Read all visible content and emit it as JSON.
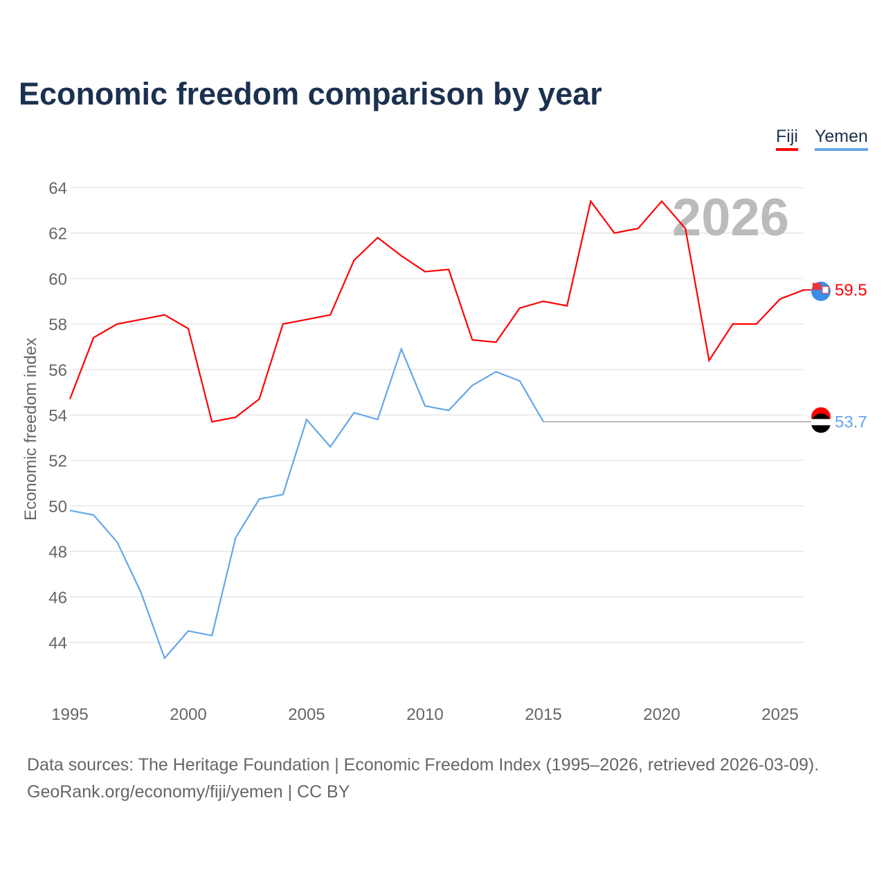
{
  "title": "Economic freedom comparison by year",
  "legend": [
    "Fiji",
    "Yemen"
  ],
  "source_line1": "Data sources: The Heritage Foundation | Economic Freedom Index (1995–2026, retrieved 2026-03-09).",
  "source_line2": "GeoRank.org/economy/fiji/yemen | CC BY",
  "year_label": "2026",
  "chart_data": {
    "type": "line",
    "title": "Economic freedom comparison by year",
    "ylabel": "Economic freedom index",
    "xlabel": "",
    "xlim": [
      1995,
      2026
    ],
    "ylim": [
      42,
      64.5
    ],
    "xticks": [
      1995,
      2000,
      2005,
      2010,
      2015,
      2020,
      2025
    ],
    "yticks": [
      44,
      46,
      48,
      50,
      52,
      54,
      56,
      58,
      60,
      62,
      64
    ],
    "grid": true,
    "legend_placement": "top-right",
    "series": [
      {
        "name": "Fiji",
        "color": "#ff0000",
        "end_label": "59.5",
        "x": [
          1995,
          1996,
          1997,
          1998,
          1999,
          2000,
          2001,
          2002,
          2003,
          2004,
          2005,
          2006,
          2007,
          2008,
          2009,
          2010,
          2011,
          2012,
          2013,
          2014,
          2015,
          2016,
          2017,
          2018,
          2019,
          2020,
          2021,
          2022,
          2023,
          2024,
          2025,
          2026
        ],
        "values": [
          54.7,
          57.4,
          58.0,
          58.2,
          58.4,
          57.8,
          53.7,
          53.9,
          54.7,
          58.0,
          58.2,
          58.4,
          60.8,
          61.8,
          61.0,
          60.3,
          60.4,
          57.3,
          57.2,
          58.7,
          59.0,
          58.8,
          63.4,
          62.0,
          62.2,
          63.4,
          62.2,
          56.4,
          58.0,
          58.0,
          59.1,
          59.5
        ]
      },
      {
        "name": "Yemen",
        "color": "#64a6e8",
        "end_label": "53.7",
        "carried_forward_from": 2015,
        "x": [
          1995,
          1996,
          1997,
          1998,
          1999,
          2000,
          2001,
          2002,
          2003,
          2004,
          2005,
          2006,
          2007,
          2008,
          2009,
          2010,
          2011,
          2012,
          2013,
          2014,
          2015
        ],
        "values": [
          49.8,
          49.6,
          48.4,
          46.2,
          43.3,
          44.5,
          44.3,
          48.6,
          50.3,
          50.5,
          53.8,
          52.6,
          54.1,
          53.8,
          56.9,
          54.4,
          54.2,
          55.3,
          55.9,
          55.5,
          53.7
        ]
      }
    ]
  }
}
